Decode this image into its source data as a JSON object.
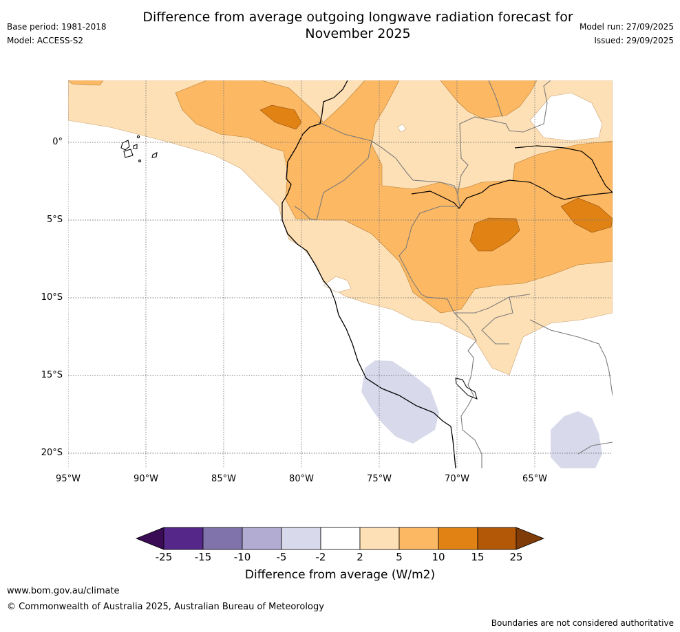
{
  "title": "Difference from average outgoing longwave radiation forecast for November 2025",
  "title_line1": "Difference from average outgoing longwave radiation forecast for",
  "title_line2": "November 2025",
  "base_period": "Base period: 1981-2018",
  "model": "Model: ACCESS-S2",
  "model_run": "Model run: 27/09/2025",
  "issued": "Issued: 29/09/2025",
  "latitude_labels": [
    "0°",
    "5°S",
    "10°S",
    "15°S",
    "20°S"
  ],
  "longitude_labels": [
    "95°W",
    "90°W",
    "85°W",
    "80°W",
    "75°W",
    "70°W",
    "65°W"
  ],
  "colorbar": {
    "title": "Difference from average (W/m2)",
    "ticks": [
      "-25",
      "-15",
      "-10",
      "-5",
      "-2",
      "2",
      "5",
      "10",
      "15",
      "25"
    ],
    "colors": [
      "#3a0c55",
      "#542788",
      "#8073ac",
      "#b2abd2",
      "#d8daeb",
      "#ffffff",
      "#fee0b6",
      "#fdb863",
      "#e08214",
      "#b35806",
      "#7f3b08"
    ]
  },
  "footer": {
    "url": "www.bom.gov.au/climate",
    "copyright": "© Commonwealth of Australia 2025, Australian Bureau of Meteorology",
    "note": "Boundaries are not considered authoritative"
  }
}
